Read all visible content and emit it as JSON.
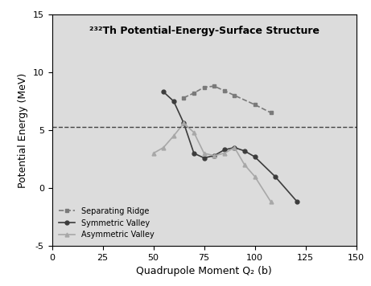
{
  "chart_data": {
    "type": "line",
    "title": "²³²Th Potential-Energy-Surface Structure",
    "x_label": "Quadrupole Moment Q₂ (b)",
    "y_label": "Potential Energy (MeV)",
    "xlim": [
      0,
      150
    ],
    "xticks": [
      0,
      25,
      50,
      75,
      100,
      125,
      150
    ],
    "ylim": [
      -5,
      15
    ],
    "yticks": [
      -5,
      0,
      5,
      10,
      15
    ],
    "hlines": [
      5.3
    ],
    "legend": "lower left",
    "grid": false,
    "series": [
      {
        "name": "Separating Ridge",
        "color": "#7a7a7a",
        "marker": "square",
        "line_style": "dashed",
        "x": [
          65,
          70,
          75,
          80,
          85,
          90,
          100,
          108
        ],
        "values": [
          7.8,
          8.2,
          8.7,
          8.8,
          8.4,
          8.0,
          7.2,
          6.5
        ]
      },
      {
        "name": "Symmetric Valley",
        "color": "#3c3c3c",
        "marker": "circle",
        "line_style": "solid",
        "x": [
          55,
          60,
          65,
          70,
          75,
          80,
          85,
          90,
          95,
          100,
          110,
          121
        ],
        "values": [
          8.3,
          7.5,
          5.6,
          3.0,
          2.6,
          2.8,
          3.3,
          3.5,
          3.2,
          2.7,
          1.0,
          -1.2
        ]
      },
      {
        "name": "Asymmetric Valley",
        "color": "#a8a8a8",
        "marker": "triangle",
        "line_style": "solid",
        "x": [
          50,
          55,
          60,
          65,
          70,
          75,
          80,
          85,
          90,
          95,
          100,
          108
        ],
        "values": [
          3.0,
          3.5,
          4.5,
          5.6,
          4.8,
          3.0,
          2.8,
          3.0,
          3.5,
          2.0,
          1.0,
          -1.2
        ]
      }
    ]
  }
}
